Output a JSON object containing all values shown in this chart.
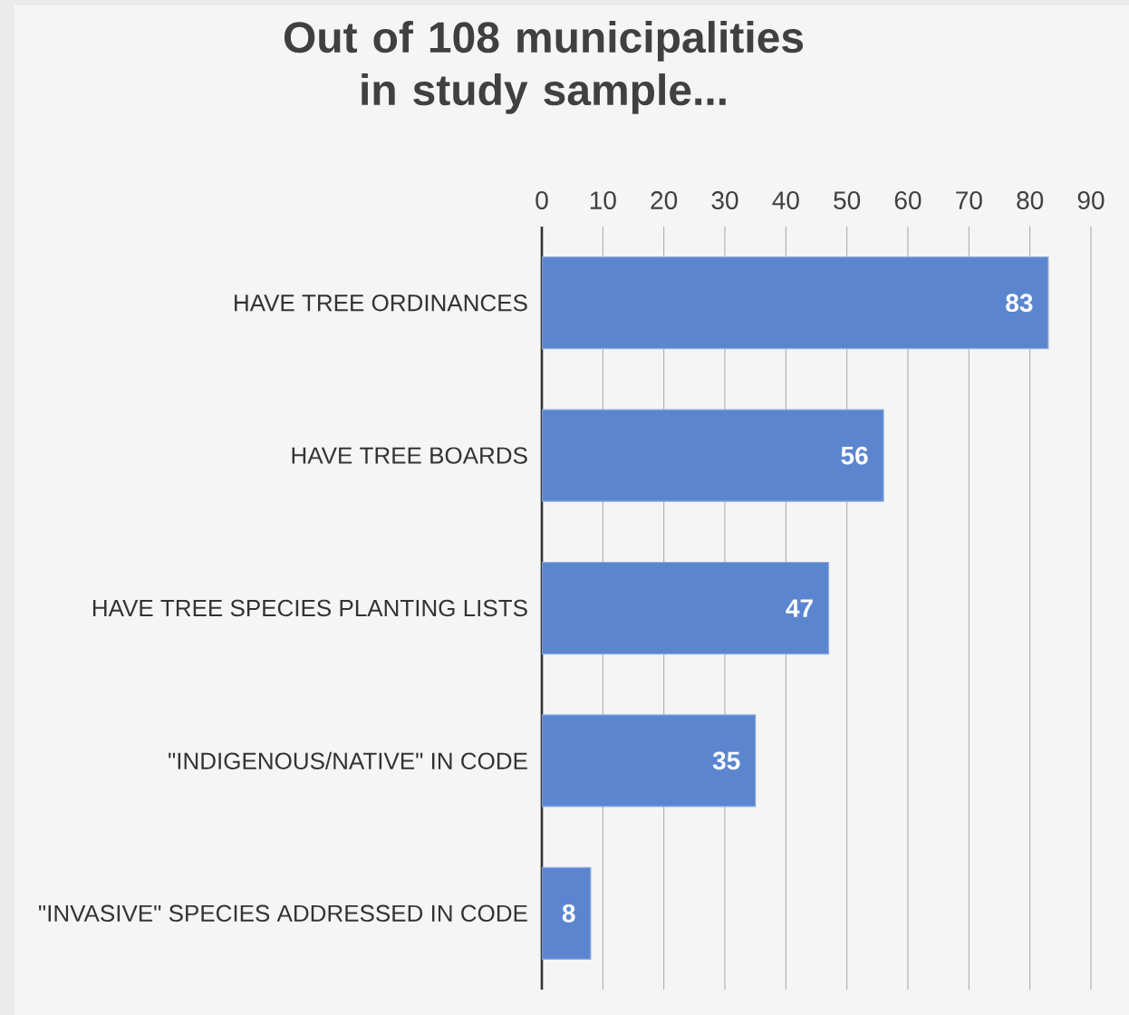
{
  "chart_data": {
    "type": "bar",
    "orientation": "horizontal",
    "title": "Out of 108 municipalities in study sample...",
    "categories": [
      "HAVE TREE ORDINANCES",
      "HAVE TREE BOARDS",
      "HAVE TREE SPECIES PLANTING LISTS",
      "\"INDIGENOUS/NATIVE\" IN CODE",
      "\"INVASIVE\" SPECIES ADDRESSED IN CODE"
    ],
    "values": [
      83,
      56,
      47,
      35,
      8
    ],
    "color": "#5b86cf",
    "xlim": [
      0,
      90
    ],
    "xticks": [
      0,
      10,
      20,
      30,
      40,
      50,
      60,
      70,
      80,
      90
    ],
    "grid": "x",
    "data_labels": true
  }
}
